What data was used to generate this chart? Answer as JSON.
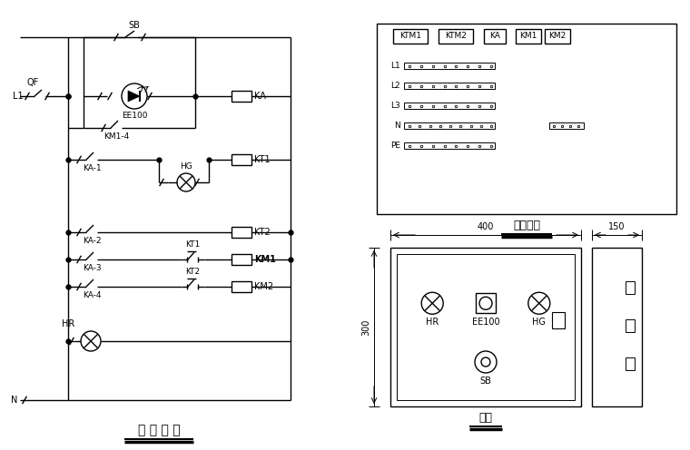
{
  "bg_color": "#ffffff",
  "lc": "#000000",
  "lw": 1.0,
  "title_left": "控 制 回 路",
  "title_right1": "元件布置",
  "title_right2": "正家",
  "labels": {
    "L1": "L1",
    "QF": "QF",
    "SB": "SB",
    "KA": "KA",
    "EE100": "EE100",
    "KM14": "KM1-4",
    "KA1": "KA-1",
    "HG": "HG",
    "KT1": "KT1",
    "KA2": "KA-2",
    "KT2": "KT2",
    "KA3": "KA-3",
    "KM1": "KM1",
    "KA4": "KA-4",
    "KM2": "KM2",
    "HR": "HR",
    "N": "N",
    "KTM1": "KTM1",
    "KTM2": "KTM2",
    "d400": "400",
    "d150": "150",
    "d300": "300"
  }
}
